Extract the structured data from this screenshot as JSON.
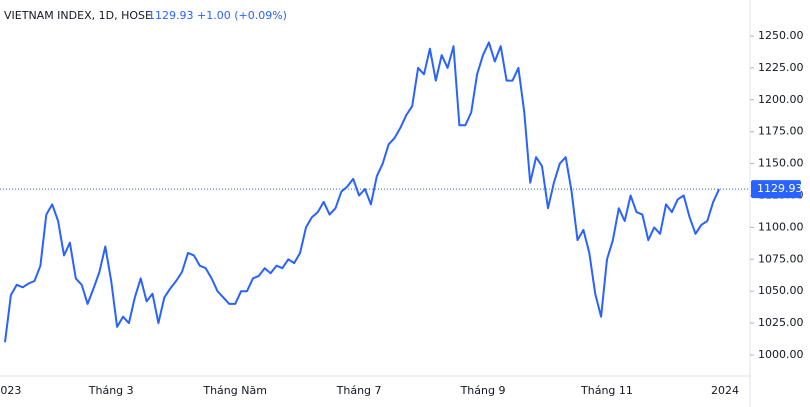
{
  "chart_data": {
    "type": "line",
    "title": "VIETNAM INDEX, 1D, HOSE",
    "change": "+1.00 (+0.09%)",
    "categories": [
      null,
      "023",
      null,
      null,
      null,
      null,
      null,
      null,
      null,
      null,
      null,
      null,
      null,
      null,
      null,
      null,
      null,
      null,
      "Tháng 3",
      null,
      null,
      null,
      null,
      null,
      null,
      null,
      null,
      null,
      null,
      null,
      null,
      null,
      null,
      null,
      null,
      null,
      null,
      null,
      null,
      "Tháng Năm",
      null,
      null,
      null,
      null,
      null,
      null,
      null,
      null,
      null,
      null,
      null,
      null,
      null,
      null,
      null,
      null,
      null,
      null,
      null,
      null,
      "Tháng 7",
      null,
      null,
      null,
      null,
      null,
      null,
      null,
      null,
      null,
      null,
      null,
      null,
      null,
      null,
      null,
      null,
      null,
      null,
      null,
      null,
      "Tháng 9",
      null,
      null,
      null,
      null,
      null,
      null,
      null,
      null,
      null,
      null,
      null,
      null,
      null,
      null,
      null,
      null,
      null,
      null,
      null,
      null,
      "Tháng 11",
      null,
      null,
      null,
      null,
      null,
      null,
      null,
      null,
      null,
      null,
      null,
      null,
      null,
      null,
      null,
      null,
      null,
      null,
      null,
      "2024"
    ],
    "series": [
      {
        "name": "VIETNAM INDEX",
        "color": "#2962ff",
        "values": [
          1010,
          1047,
          1055,
          1053,
          1056,
          1058,
          1070,
          1110,
          1118,
          1105,
          1078,
          1088,
          1060,
          1055,
          1040,
          1052,
          1065,
          1085,
          1058,
          1022,
          1030,
          1025,
          1045,
          1060,
          1042,
          1048,
          1025,
          1045,
          1052,
          1058,
          1065,
          1080,
          1078,
          1070,
          1068,
          1060,
          1050,
          1045,
          1040,
          1040,
          1050,
          1050,
          1060,
          1062,
          1068,
          1064,
          1070,
          1068,
          1075,
          1072,
          1080,
          1100,
          1108,
          1112,
          1120,
          1110,
          1115,
          1128,
          1132,
          1138,
          1125,
          1130,
          1118,
          1140,
          1150,
          1165,
          1170,
          1178,
          1188,
          1195,
          1225,
          1220,
          1240,
          1215,
          1235,
          1225,
          1242,
          1180,
          1180,
          1190,
          1220,
          1235,
          1245,
          1230,
          1242,
          1215,
          1215,
          1225,
          1190,
          1135,
          1155,
          1148,
          1115,
          1135,
          1150,
          1155,
          1128,
          1090,
          1098,
          1080,
          1048,
          1030,
          1075,
          1090,
          1115,
          1105,
          1125,
          1112,
          1110,
          1090,
          1100,
          1095,
          1118,
          1112,
          1122,
          1125,
          1108,
          1095,
          1102,
          1105,
          1120,
          1129.93,
          null
        ]
      }
    ],
    "ylim": [
      984.3,
      1278.2
    ],
    "yticks": [
      {
        "value": 1000,
        "label": "1000.00"
      },
      {
        "value": 1025,
        "label": "1025.00"
      },
      {
        "value": 1050,
        "label": "1050.00"
      },
      {
        "value": 1075,
        "label": "1075.00"
      },
      {
        "value": 1100,
        "label": "1100.00"
      },
      {
        "value": 1125,
        "label": "1125.00"
      },
      {
        "value": 1150,
        "label": "1150.00"
      },
      {
        "value": 1175,
        "label": "1175.00"
      },
      {
        "value": 1200,
        "label": "1200.00"
      },
      {
        "value": 1225,
        "label": "1225.00"
      },
      {
        "value": 1250,
        "label": "1250.00"
      }
    ]
  }
}
